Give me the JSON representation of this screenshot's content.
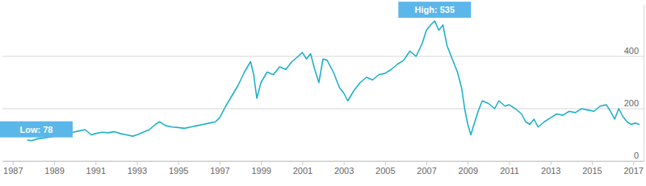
{
  "chart_data": {
    "type": "line",
    "color": "#1fb0c9",
    "grid": true,
    "xlim": [
      1986.5,
      2017.5
    ],
    "xticks": [
      1987,
      1989,
      1991,
      1993,
      1995,
      1997,
      1999,
      2001,
      2003,
      2005,
      2007,
      2009,
      2011,
      2013,
      2015,
      2017
    ],
    "ylim": [
      0,
      600
    ],
    "yticks": [
      0,
      200,
      400
    ],
    "x": [
      1987.7,
      1987.9,
      1988.2,
      1988.5,
      1988.8,
      1989.0,
      1989.3,
      1989.6,
      1989.9,
      1990.2,
      1990.5,
      1990.8,
      1991.0,
      1991.3,
      1991.6,
      1991.9,
      1992.2,
      1992.5,
      1992.8,
      1993.0,
      1993.3,
      1993.6,
      1993.9,
      1994.1,
      1994.4,
      1994.7,
      1995.0,
      1995.3,
      1995.6,
      1995.9,
      1996.2,
      1996.5,
      1996.8,
      1997.0,
      1997.3,
      1997.6,
      1997.9,
      1998.2,
      1998.5,
      1998.65,
      1998.8,
      1999.0,
      1999.3,
      1999.6,
      1999.9,
      2000.2,
      2000.5,
      2000.8,
      2001.0,
      2001.2,
      2001.4,
      2001.6,
      2001.8,
      2002.0,
      2002.2,
      2002.5,
      2002.8,
      2003.0,
      2003.2,
      2003.5,
      2003.8,
      2004.1,
      2004.4,
      2004.7,
      2005.0,
      2005.3,
      2005.6,
      2005.9,
      2006.2,
      2006.5,
      2006.8,
      2007.0,
      2007.2,
      2007.4,
      2007.6,
      2007.8,
      2008.0,
      2008.2,
      2008.5,
      2008.7,
      2008.85,
      2009.0,
      2009.15,
      2009.3,
      2009.5,
      2009.7,
      2010.0,
      2010.3,
      2010.5,
      2010.8,
      2011.0,
      2011.3,
      2011.6,
      2011.8,
      2012.0,
      2012.2,
      2012.4,
      2012.7,
      2013.0,
      2013.3,
      2013.6,
      2013.9,
      2014.2,
      2014.5,
      2014.8,
      2015.1,
      2015.4,
      2015.7,
      2015.9,
      2016.1,
      2016.3,
      2016.5,
      2016.7,
      2016.9,
      2017.1,
      2017.3
    ],
    "values": [
      80,
      78,
      85,
      88,
      92,
      95,
      100,
      105,
      110,
      115,
      120,
      100,
      105,
      110,
      108,
      112,
      105,
      100,
      95,
      100,
      110,
      120,
      140,
      150,
      135,
      130,
      128,
      125,
      130,
      135,
      140,
      145,
      150,
      165,
      210,
      250,
      290,
      340,
      380,
      330,
      240,
      300,
      340,
      330,
      360,
      350,
      380,
      400,
      415,
      390,
      410,
      350,
      300,
      390,
      385,
      340,
      280,
      260,
      230,
      270,
      300,
      320,
      310,
      330,
      335,
      350,
      370,
      385,
      420,
      400,
      450,
      500,
      520,
      535,
      500,
      520,
      440,
      400,
      340,
      280,
      200,
      140,
      100,
      140,
      190,
      230,
      220,
      200,
      230,
      210,
      215,
      200,
      180,
      150,
      140,
      160,
      130,
      150,
      165,
      180,
      175,
      190,
      185,
      200,
      195,
      190,
      210,
      215,
      190,
      160,
      200,
      170,
      150,
      140,
      145,
      140
    ],
    "annotations": [
      {
        "text": "Low: 78",
        "x": 1987.9,
        "y": 78
      },
      {
        "text": "High: 535",
        "x": 2007.4,
        "y": 535
      }
    ]
  }
}
